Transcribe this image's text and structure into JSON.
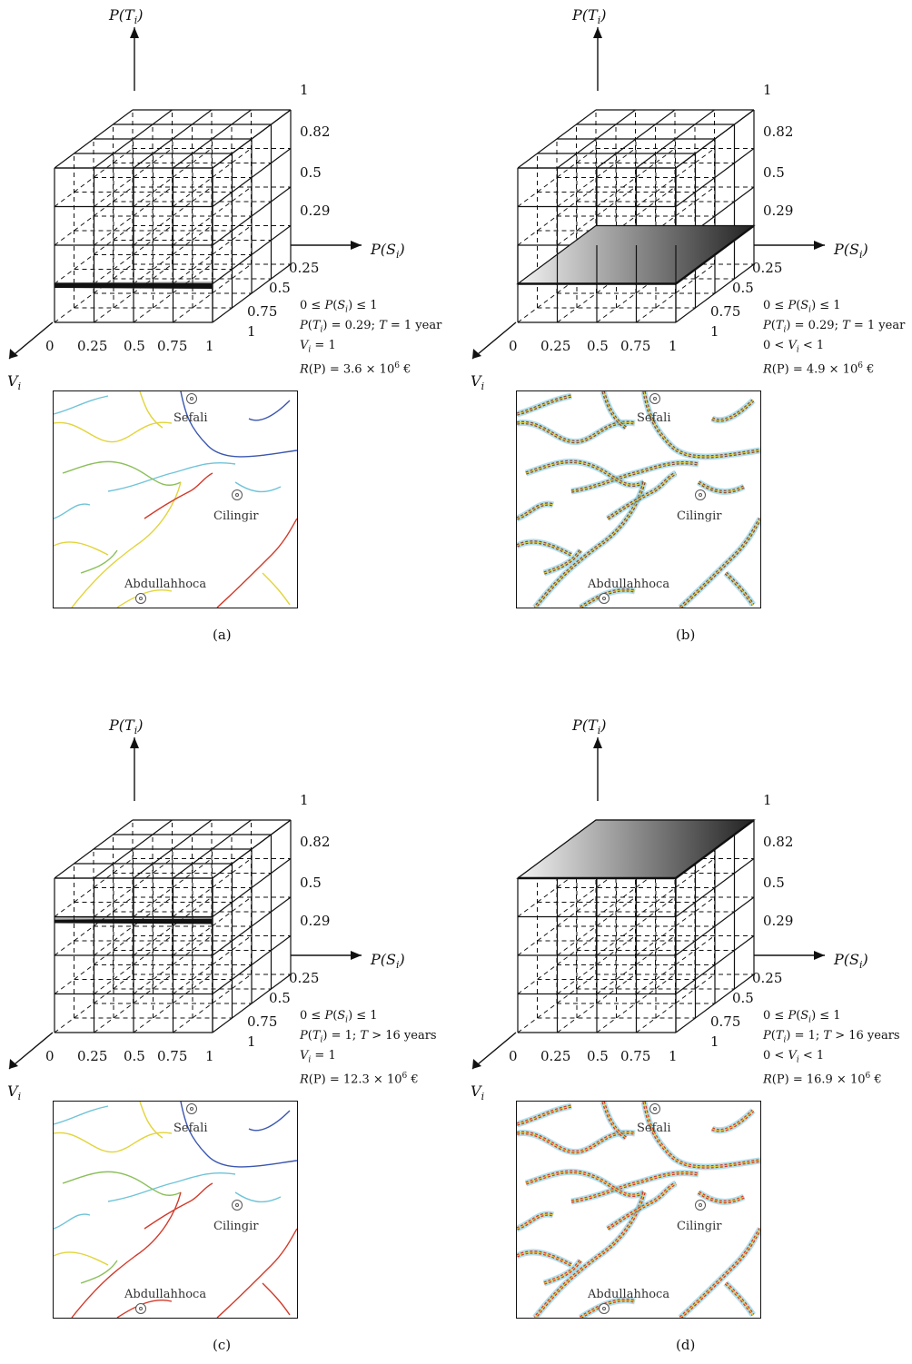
{
  "axis_labels": {
    "pt": "P(T_i)",
    "ps": "P(S_i)",
    "v": "V_i"
  },
  "tick_labels": {
    "pt": [
      "1",
      "0.82",
      "0.5",
      "0.29"
    ],
    "ps_front": [
      "0",
      "0.25",
      "0.5",
      "0.75",
      "1"
    ],
    "ps_depth": [
      "0.25",
      "0.5",
      "0.75",
      "1"
    ]
  },
  "places": [
    "Sefali",
    "Cilingir",
    "Abdullahhoca"
  ],
  "panels": [
    {
      "caption": "(a)",
      "highlight_level": 0.29,
      "highlight_mode": "line",
      "notes": [
        "0 ≤ P(S_i) ≤ 1",
        "P(T_i) = 0.29; T = 1 year",
        "V_i = 1",
        "R(P) = 3.6 × 10^6 €"
      ]
    },
    {
      "caption": "(b)",
      "highlight_level": 0.29,
      "highlight_mode": "plane",
      "notes": [
        "0 ≤ P(S_i) ≤ 1",
        "P(T_i) = 0.29; T = 1 year",
        "0 < V_i < 1",
        "R(P) = 4.9 × 10^6 €"
      ]
    },
    {
      "caption": "(c)",
      "highlight_level": 1,
      "highlight_mode": "line",
      "notes": [
        "0 ≤ P(S_i) ≤ 1",
        "P(T_i) = 1; T > 16 years",
        "V_i = 1",
        "R(P) = 12.3 × 10^6 €"
      ]
    },
    {
      "caption": "(d)",
      "highlight_level": 1,
      "highlight_mode": "plane",
      "notes": [
        "0 ≤ P(S_i) ≤ 1",
        "P(T_i) = 1; T > 16 years",
        "0 < V_i < 1",
        "R(P) = 16.9 × 10^6 €"
      ]
    }
  ],
  "colors": {
    "line": "#111111",
    "map_blue": "#3a56b0",
    "map_yellow": "#e2d43a",
    "map_red": "#d23a2a",
    "map_cyan": "#6fc3d8",
    "map_green": "#8bbf5a"
  }
}
